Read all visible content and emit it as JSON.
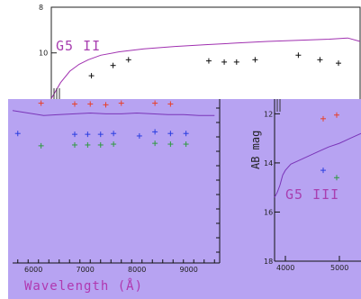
{
  "chart_data": [
    {
      "id": "top",
      "type": "line",
      "title": "G5 II",
      "ylabel": "",
      "y_ticks": [
        "8",
        "10"
      ],
      "ylim": [
        8,
        12.1
      ],
      "xlim": [
        0,
        1
      ],
      "spectrum": {
        "color": "#a030b0",
        "x": [
          0.0,
          0.03,
          0.06,
          0.09,
          0.12,
          0.16,
          0.22,
          0.3,
          0.4,
          0.5,
          0.6,
          0.7,
          0.8,
          0.9,
          0.96,
          1.0
        ],
        "y": [
          12.0,
          11.3,
          10.8,
          10.5,
          10.3,
          10.1,
          9.95,
          9.82,
          9.72,
          9.64,
          9.57,
          9.5,
          9.45,
          9.4,
          9.35,
          9.5
        ]
      },
      "markers": {
        "color": "#111111",
        "x": [
          0.13,
          0.2,
          0.25,
          0.51,
          0.56,
          0.6,
          0.66,
          0.8,
          0.87,
          0.93
        ],
        "y": [
          11.0,
          10.55,
          10.3,
          10.35,
          10.4,
          10.4,
          10.3,
          10.1,
          10.3,
          10.45
        ]
      }
    },
    {
      "id": "main",
      "type": "scatter",
      "xlabel": "Wavelength (Å)",
      "x_ticks": [
        6000,
        7000,
        8000,
        9000
      ],
      "xlim": [
        5600,
        9600
      ],
      "ylim": [
        0,
        1
      ],
      "spectrum": {
        "color": "#7a35b8",
        "x": [
          5600,
          5900,
          6200,
          6500,
          6800,
          7100,
          7400,
          7700,
          8000,
          8300,
          8600,
          8900,
          9200,
          9500
        ],
        "y": [
          0.93,
          0.915,
          0.9,
          0.905,
          0.91,
          0.915,
          0.91,
          0.91,
          0.915,
          0.91,
          0.905,
          0.905,
          0.9,
          0.9
        ]
      },
      "series": [
        {
          "name": "",
          "color": "#e8402a",
          "x": [
            6150,
            6800,
            7100,
            7400,
            7700,
            8350,
            8650
          ],
          "y": [
            0.975,
            0.97,
            0.97,
            0.965,
            0.975,
            0.975,
            0.97
          ]
        },
        {
          "name": "",
          "color": "#2a3ee0",
          "x": [
            5700,
            6800,
            7050,
            7300,
            7550,
            8050,
            8350,
            8650,
            8950
          ],
          "y": [
            0.79,
            0.785,
            0.785,
            0.785,
            0.79,
            0.775,
            0.8,
            0.79,
            0.79
          ]
        },
        {
          "name": "",
          "color": "#2f9a40",
          "x": [
            6150,
            6800,
            7050,
            7300,
            7550,
            8350,
            8650,
            8950
          ],
          "y": [
            0.715,
            0.72,
            0.72,
            0.72,
            0.725,
            0.73,
            0.725,
            0.725
          ]
        }
      ]
    },
    {
      "id": "right",
      "type": "line",
      "title": "G5 III",
      "ylabel": "AB mag",
      "y_ticks": [
        12,
        14,
        16,
        18
      ],
      "x_ticks": [
        4000,
        5000
      ],
      "xlim": [
        3800,
        5400
      ],
      "ylim": [
        18,
        11.4
      ],
      "spectrum": {
        "color": "#7a35b8",
        "x": [
          3800,
          3850,
          3900,
          3950,
          4000,
          4100,
          4250,
          4400,
          4600,
          4800,
          5000,
          5200,
          5400
        ],
        "y": [
          15.4,
          15.2,
          14.9,
          14.5,
          14.3,
          14.05,
          13.9,
          13.75,
          13.55,
          13.35,
          13.2,
          13.0,
          12.8
        ]
      },
      "series": [
        {
          "name": "",
          "color": "#e8402a",
          "x": [
            4700,
            4950
          ],
          "y": [
            12.2,
            12.05
          ]
        },
        {
          "name": "",
          "color": "#2a3ee0",
          "x": [
            4700
          ],
          "y": [
            14.3
          ]
        },
        {
          "name": "",
          "color": "#2f9a40",
          "x": [
            4950
          ],
          "y": [
            14.6
          ]
        }
      ]
    }
  ]
}
